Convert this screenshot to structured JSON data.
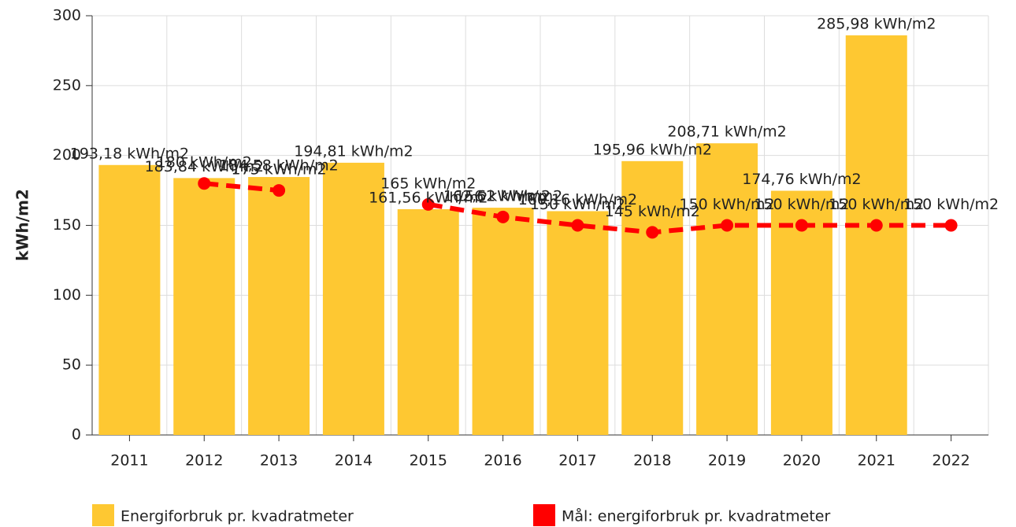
{
  "chart_data": {
    "type": "bar-line",
    "ylabel": "kWh/m2",
    "categories": [
      "2011",
      "2012",
      "2013",
      "2014",
      "2015",
      "2016",
      "2017",
      "2018",
      "2019",
      "2020",
      "2021",
      "2022"
    ],
    "series": [
      {
        "name": "Energiforbruk pr. kvadratmeter",
        "type": "bar",
        "color": "#fec832",
        "values": [
          193.18,
          183.84,
          184.58,
          194.81,
          161.56,
          162.62,
          160.16,
          195.96,
          208.71,
          174.76,
          285.98,
          null
        ],
        "value_labels": [
          "193,18 kWh/m2",
          "183,84 kWh/m2",
          "184,58 kWh/m2",
          "194,81 kWh/m2",
          "161,56 kWh/m2",
          "162,62 kWh/m2",
          "160,16 kWh/m2",
          "195,96 kWh/m2",
          "208,71 kWh/m2",
          "174,76 kWh/m2",
          "285,98 kWh/m2",
          null
        ]
      },
      {
        "name": "Mål: energiforbruk pr. kvadratmeter",
        "type": "line",
        "color": "#ff0000",
        "values": [
          null,
          180,
          175,
          null,
          165,
          156,
          150,
          145,
          150,
          150,
          150,
          150
        ],
        "value_labels": [
          null,
          "180 kWh/m2",
          "175 kWh/m2",
          null,
          "165 kWh/m2",
          "156 kWh/m2",
          "150 kWh/m2",
          "145 kWh/m2",
          "150 kWh/m2",
          "150 kWh/m2",
          "150 kWh/m2",
          "150 kWh/m2"
        ]
      }
    ],
    "ylim": [
      0,
      300
    ],
    "yticks": [
      0,
      50,
      100,
      150,
      200,
      250,
      300
    ],
    "grid": true
  }
}
